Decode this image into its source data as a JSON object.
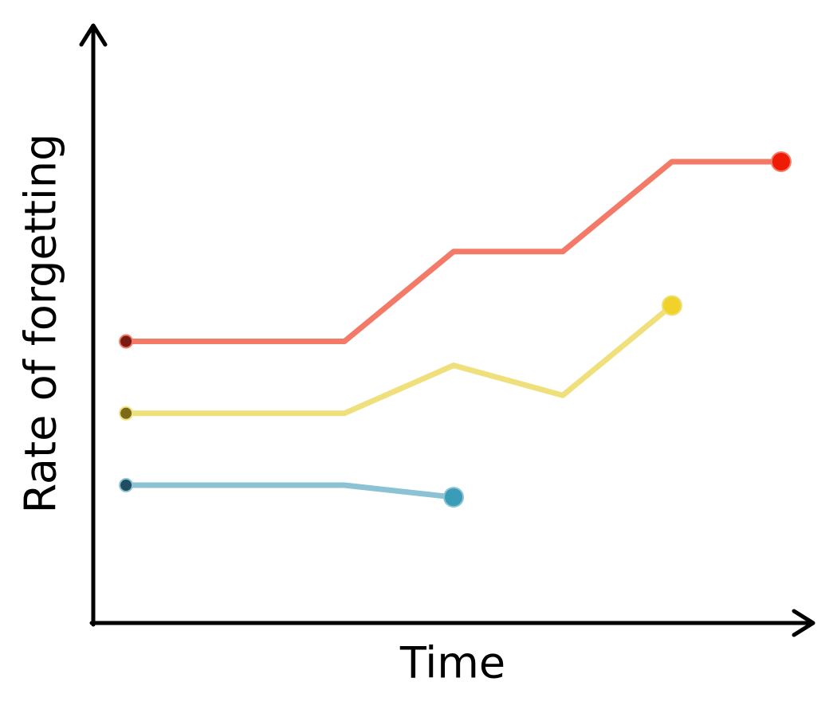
{
  "chart_data": {
    "type": "line",
    "xlabel": "Time",
    "ylabel": "Rate of forgetting",
    "x": [
      0,
      2,
      3,
      4,
      5,
      6
    ],
    "xlim": [
      -0.3,
      6.3
    ],
    "ylim": [
      0,
      10
    ],
    "series": [
      {
        "color": "#f47a68",
        "start_color": "#7a1a10",
        "end_color": "#ee1c06",
        "values": [
          4.7,
          4.7,
          6.2,
          6.2,
          7.7,
          7.7
        ]
      },
      {
        "color": "#f0e07c",
        "start_color": "#7a6a1a",
        "end_color": "#f0d22a",
        "values": [
          3.5,
          3.5,
          4.3,
          3.8,
          5.3,
          null
        ]
      },
      {
        "color": "#8cc3d4",
        "start_color": "#1f4e60",
        "end_color": "#3a9cb6",
        "values": [
          2.3,
          2.3,
          2.1,
          null,
          null,
          null
        ]
      }
    ]
  }
}
